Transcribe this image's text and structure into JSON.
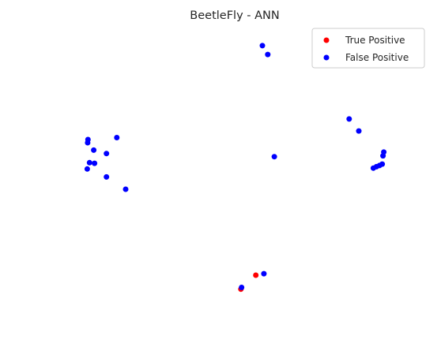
{
  "chart_data": {
    "type": "scatter",
    "title": "BeetleFly - ANN",
    "xlabel": "",
    "ylabel": "",
    "axes_visible": false,
    "grid": false,
    "legend_position": "top-right",
    "xlim": [
      0,
      100
    ],
    "ylim": [
      0,
      100
    ],
    "series": [
      {
        "name": "True Positive",
        "color": "#ff0000",
        "points": [
          {
            "x": 51.6,
            "y": 9.2
          },
          {
            "x": 55.5,
            "y": 14.1
          }
        ]
      },
      {
        "name": "False Positive",
        "color": "#0000ff",
        "points": [
          {
            "x": 57.2,
            "y": 94.5
          },
          {
            "x": 58.6,
            "y": 91.4
          },
          {
            "x": 79.8,
            "y": 68.8
          },
          {
            "x": 82.3,
            "y": 64.6
          },
          {
            "x": 88.8,
            "y": 57.2
          },
          {
            "x": 88.6,
            "y": 55.9
          },
          {
            "x": 88.4,
            "y": 53.0
          },
          {
            "x": 87.7,
            "y": 52.5
          },
          {
            "x": 86.9,
            "y": 52.1
          },
          {
            "x": 86.1,
            "y": 51.6
          },
          {
            "x": 60.3,
            "y": 55.6
          },
          {
            "x": 11.8,
            "y": 61.6
          },
          {
            "x": 11.7,
            "y": 60.5
          },
          {
            "x": 13.3,
            "y": 57.9
          },
          {
            "x": 19.3,
            "y": 62.3
          },
          {
            "x": 16.6,
            "y": 56.7
          },
          {
            "x": 12.2,
            "y": 53.5
          },
          {
            "x": 13.5,
            "y": 53.3
          },
          {
            "x": 11.6,
            "y": 51.3
          },
          {
            "x": 16.6,
            "y": 48.5
          },
          {
            "x": 21.6,
            "y": 44.2
          },
          {
            "x": 57.6,
            "y": 14.6
          },
          {
            "x": 51.8,
            "y": 9.8
          }
        ]
      }
    ]
  }
}
